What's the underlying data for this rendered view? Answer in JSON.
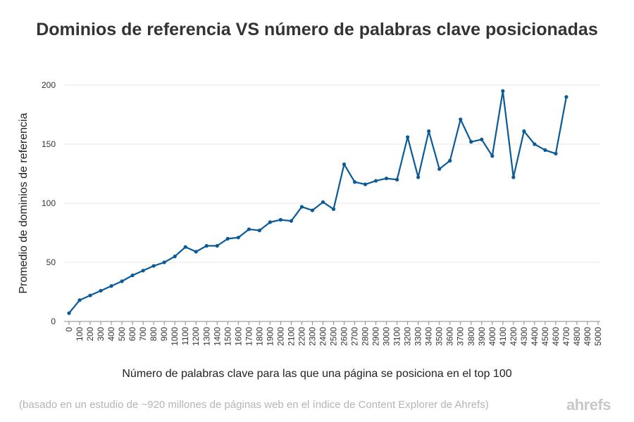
{
  "chart_data": {
    "type": "line",
    "title": "Dominios de referencia VS número de palabras clave posicionadas",
    "xlabel": "Número de palabras clave para las que una página se posiciona en el top 100",
    "ylabel": "Promedio de dominios de referencia",
    "ylim": [
      0,
      200
    ],
    "yticks": [
      0,
      50,
      100,
      150,
      200
    ],
    "grid": true,
    "line_color": "#0b5a98",
    "categories": [
      "0",
      "100",
      "200",
      "300",
      "400",
      "500",
      "600",
      "700",
      "800",
      "900",
      "1000",
      "1100",
      "1200",
      "1300",
      "1400",
      "1500",
      "1600",
      "1700",
      "1800",
      "1900",
      "2000",
      "2100",
      "2200",
      "2300",
      "2400",
      "2500",
      "2600",
      "2700",
      "2800",
      "2900",
      "3000",
      "3100",
      "3200",
      "3300",
      "3400",
      "3500",
      "3600",
      "3700",
      "3800",
      "3900",
      "4000",
      "4100",
      "4200",
      "4300",
      "4400",
      "4500",
      "4600",
      "4700",
      "4800",
      "4900",
      "5000"
    ],
    "series": [
      {
        "name": "Promedio de dominios de referencia",
        "x": [
          0,
          100,
          200,
          300,
          400,
          500,
          600,
          700,
          800,
          900,
          1000,
          1100,
          1200,
          1300,
          1400,
          1500,
          1600,
          1700,
          1800,
          1900,
          2000,
          2100,
          2200,
          2300,
          2400,
          2500,
          2600,
          2700,
          2800,
          2900,
          3000,
          3100,
          3200,
          3300,
          3400,
          3500,
          3600,
          3700,
          3800,
          3900,
          4000,
          4100,
          4200,
          4300,
          4400,
          4500,
          4600,
          4700,
          4800,
          4900
        ],
        "values": [
          7,
          18,
          22,
          26,
          30,
          34,
          39,
          43,
          47,
          50,
          55,
          63,
          59,
          64,
          64,
          70,
          71,
          78,
          77,
          84,
          86,
          85,
          97,
          94,
          101,
          95,
          133,
          118,
          116,
          119,
          121,
          120,
          156,
          122,
          161,
          129,
          136,
          171,
          152,
          154,
          140,
          195,
          122,
          161,
          150,
          145,
          142,
          190,
          null,
          null
        ]
      }
    ]
  },
  "footnote": "(basado en un estudio de ~920 millones de páginas web en el índice de Content Explorer de Ahrefs)",
  "brand": "ahrefs"
}
